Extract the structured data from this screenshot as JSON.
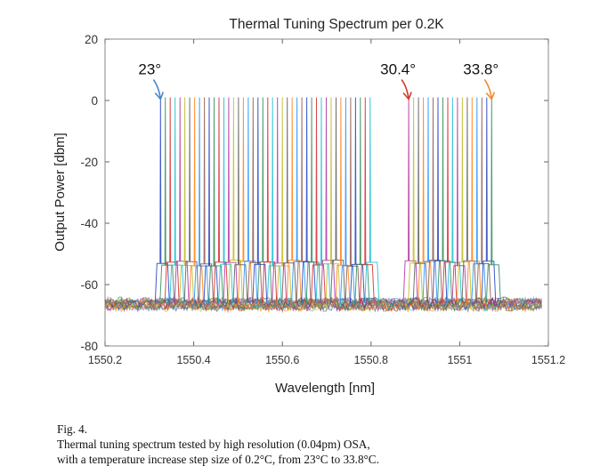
{
  "chart_data": {
    "type": "line",
    "title": "Thermal Tuning Spectrum per 0.2K",
    "xlabel": "Wavelength [nm]",
    "ylabel": "Output Power [dbm]",
    "xlim": [
      1550.2,
      1551.2
    ],
    "ylim": [
      -80,
      20
    ],
    "x_ticks": [
      1550.2,
      1550.4,
      1550.6,
      1550.8,
      1551,
      1551.2
    ],
    "x_tick_labels": [
      "1550.2",
      "1550.4",
      "1550.6",
      "1550.8",
      "1551",
      "1551.2"
    ],
    "y_ticks": [
      -80,
      -60,
      -40,
      -20,
      0,
      20
    ],
    "y_tick_labels": [
      "-80",
      "-60",
      "-40",
      "-20",
      "0",
      "20"
    ],
    "grid": false,
    "noise_floor_dbm": -66,
    "series": [
      {
        "x": 1550.325,
        "y": 1
      },
      {
        "x": 1550.336,
        "y": 1
      },
      {
        "x": 1550.347,
        "y": 1
      },
      {
        "x": 1550.358,
        "y": 1
      },
      {
        "x": 1550.369,
        "y": 1
      },
      {
        "x": 1550.38,
        "y": 1
      },
      {
        "x": 1550.391,
        "y": 1
      },
      {
        "x": 1550.402,
        "y": 1
      },
      {
        "x": 1550.413,
        "y": 1
      },
      {
        "x": 1550.424,
        "y": 1
      },
      {
        "x": 1550.435,
        "y": 1
      },
      {
        "x": 1550.446,
        "y": 1
      },
      {
        "x": 1550.457,
        "y": 1
      },
      {
        "x": 1550.468,
        "y": 1
      },
      {
        "x": 1550.479,
        "y": 1
      },
      {
        "x": 1550.49,
        "y": 1
      },
      {
        "x": 1550.501,
        "y": 1
      },
      {
        "x": 1550.512,
        "y": 1
      },
      {
        "x": 1550.523,
        "y": 1
      },
      {
        "x": 1550.534,
        "y": 1
      },
      {
        "x": 1550.545,
        "y": 1
      },
      {
        "x": 1550.556,
        "y": 1
      },
      {
        "x": 1550.567,
        "y": 1
      },
      {
        "x": 1550.578,
        "y": 1
      },
      {
        "x": 1550.589,
        "y": 1
      },
      {
        "x": 1550.6,
        "y": 1
      },
      {
        "x": 1550.611,
        "y": 1
      },
      {
        "x": 1550.622,
        "y": 1
      },
      {
        "x": 1550.633,
        "y": 1
      },
      {
        "x": 1550.644,
        "y": 1
      },
      {
        "x": 1550.655,
        "y": 1
      },
      {
        "x": 1550.666,
        "y": 1
      },
      {
        "x": 1550.677,
        "y": 1
      },
      {
        "x": 1550.688,
        "y": 1
      },
      {
        "x": 1550.699,
        "y": 1
      },
      {
        "x": 1550.71,
        "y": 1
      },
      {
        "x": 1550.721,
        "y": 1
      },
      {
        "x": 1550.732,
        "y": 1
      },
      {
        "x": 1550.743,
        "y": 1
      },
      {
        "x": 1550.754,
        "y": 1
      },
      {
        "x": 1550.765,
        "y": 1
      },
      {
        "x": 1550.776,
        "y": 1
      },
      {
        "x": 1550.787,
        "y": 1
      },
      {
        "x": 1550.798,
        "y": 1
      },
      {
        "x": 1550.885,
        "y": 1
      },
      {
        "x": 1550.896,
        "y": 1
      },
      {
        "x": 1550.907,
        "y": 1
      },
      {
        "x": 1550.918,
        "y": 1
      },
      {
        "x": 1550.929,
        "y": 1
      },
      {
        "x": 1550.94,
        "y": 1
      },
      {
        "x": 1550.951,
        "y": 1
      },
      {
        "x": 1550.962,
        "y": 1
      },
      {
        "x": 1550.973,
        "y": 1
      },
      {
        "x": 1550.984,
        "y": 1
      },
      {
        "x": 1550.995,
        "y": 1
      },
      {
        "x": 1551.006,
        "y": 1
      },
      {
        "x": 1551.017,
        "y": 1
      },
      {
        "x": 1551.028,
        "y": 1
      },
      {
        "x": 1551.039,
        "y": 1
      },
      {
        "x": 1551.05,
        "y": 1
      },
      {
        "x": 1551.061,
        "y": 1
      },
      {
        "x": 1551.072,
        "y": 1
      }
    ],
    "annotations": [
      {
        "text": "23°",
        "x": 1550.325,
        "y": 1,
        "color": "#4a86c8"
      },
      {
        "text": "30.4°",
        "x": 1550.885,
        "y": 1,
        "color": "#d23a2a"
      },
      {
        "text": "33.8°",
        "x": 1551.072,
        "y": 1,
        "color": "#f08a2a"
      }
    ],
    "line_colors": [
      "#1f3fbf",
      "#2e8b57",
      "#d62728",
      "#17becf",
      "#b0319f",
      "#bcbd22",
      "#5a5a5a",
      "#ff7f0e",
      "#1e90ff",
      "#8c564b"
    ]
  },
  "caption": {
    "fig_num": "Fig. 4.",
    "line1": "Thermal tuning spectrum tested by high resolution (0.04pm) OSA,",
    "line2": "with a temperature increase step size of 0.2°C, from 23°C to 33.8°C."
  }
}
